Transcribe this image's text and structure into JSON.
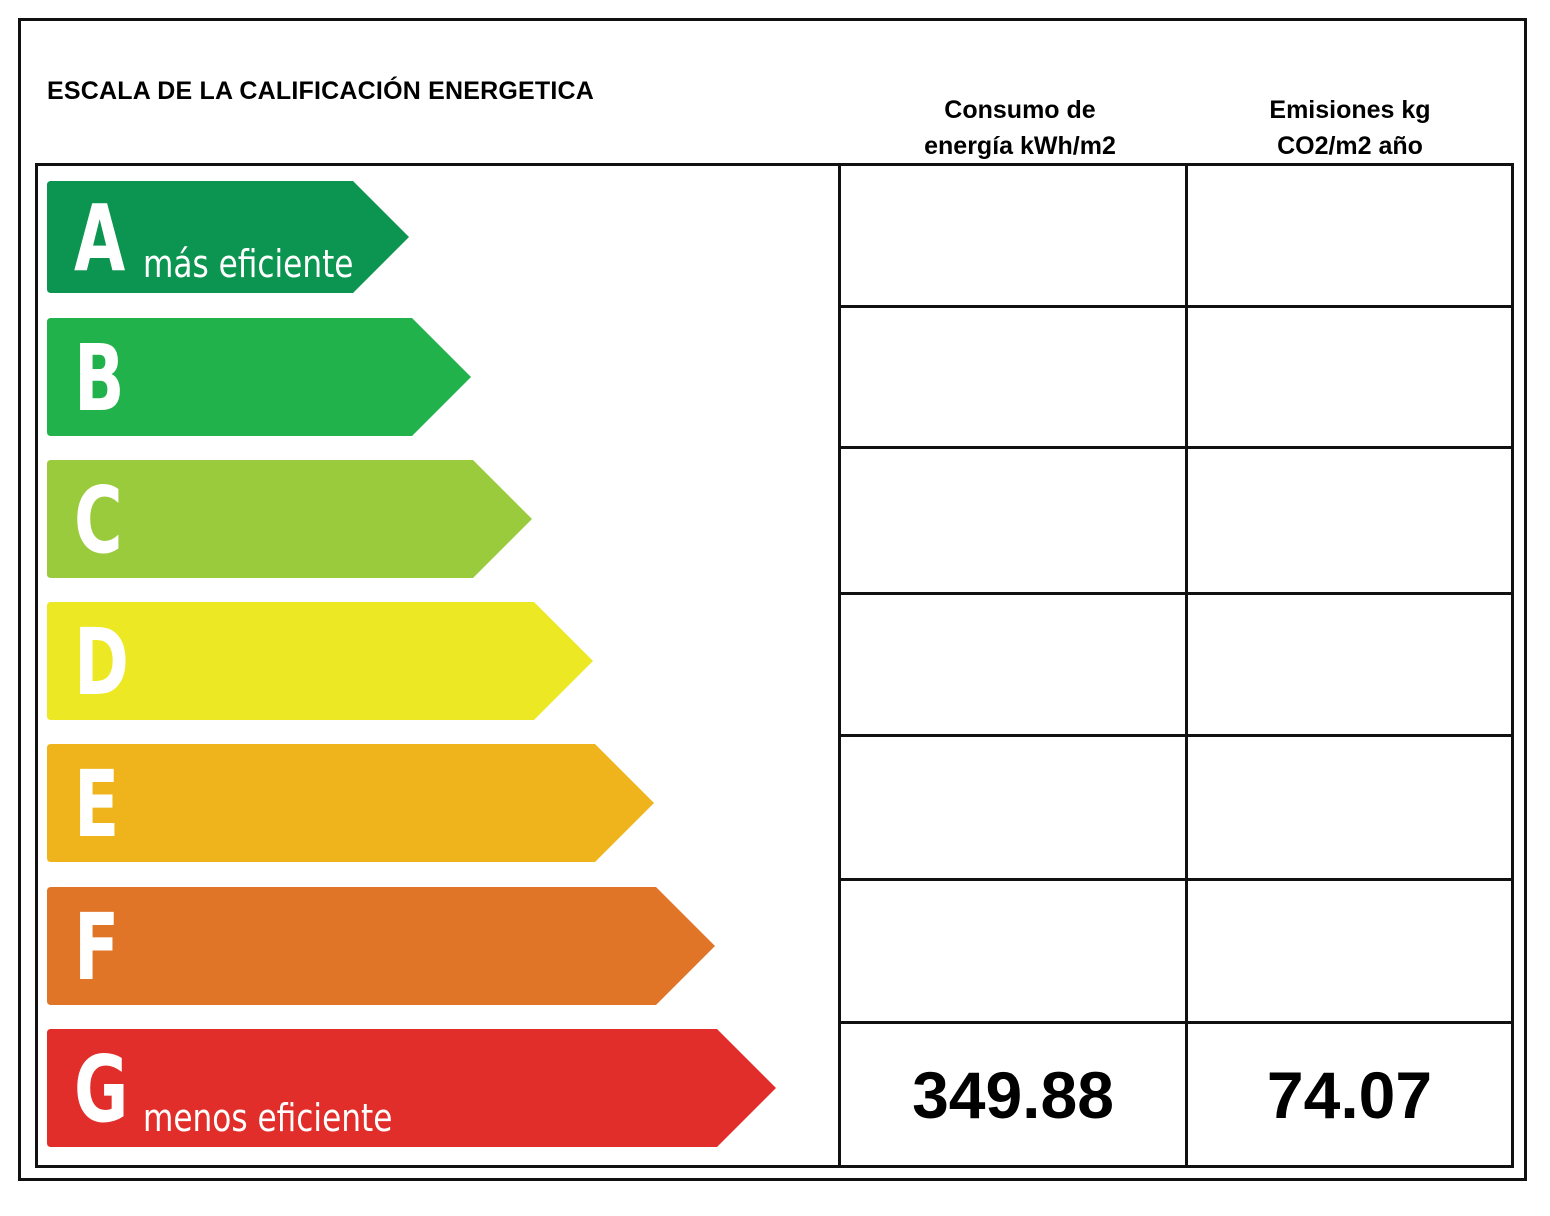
{
  "title": "ESCALA DE LA CALIFICACIÓN ENERGETICA",
  "columns": {
    "energy": {
      "line1": "Consumo de",
      "line2": "energía kWh/m2"
    },
    "emissions": {
      "line1": "Emisiones kg",
      "line2": "CO2/m2 año"
    }
  },
  "ratings": [
    {
      "letter": "A",
      "note": "más eficiente",
      "color": "#0c9550",
      "energy": "",
      "emissions": ""
    },
    {
      "letter": "B",
      "note": "",
      "color": "#21b24b",
      "energy": "",
      "emissions": ""
    },
    {
      "letter": "C",
      "note": "",
      "color": "#9acb3c",
      "energy": "",
      "emissions": ""
    },
    {
      "letter": "D",
      "note": "",
      "color": "#ece823",
      "energy": "",
      "emissions": ""
    },
    {
      "letter": "E",
      "note": "",
      "color": "#efb41b",
      "energy": "",
      "emissions": ""
    },
    {
      "letter": "F",
      "note": "",
      "color": "#e07528",
      "energy": "",
      "emissions": ""
    },
    {
      "letter": "G",
      "note": "menos eficiente",
      "color": "#e22e2a",
      "energy": "349.88",
      "emissions": "74.07"
    }
  ]
}
